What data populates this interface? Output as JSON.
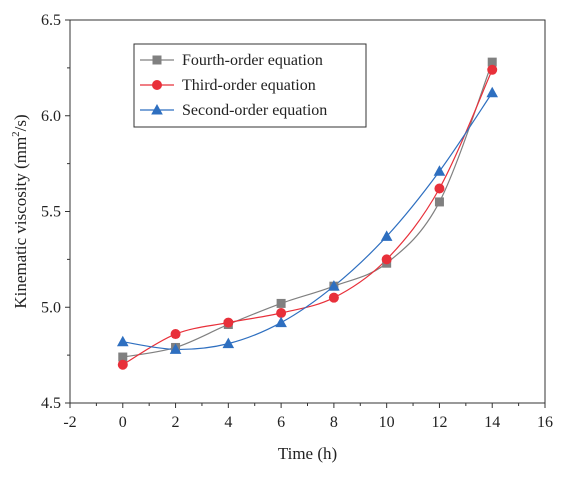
{
  "chart_data": {
    "type": "line",
    "title": "",
    "xlabel": "Time (h)",
    "ylabel_main": "Kinematic viscosity (mm",
    "ylabel_sup": "2",
    "ylabel_end": "/s)",
    "xlim": [
      -2,
      16
    ],
    "ylim": [
      4.5,
      6.5
    ],
    "xticks": [
      -2,
      0,
      2,
      4,
      6,
      8,
      10,
      12,
      14,
      16
    ],
    "yticks": [
      4.5,
      5.0,
      5.5,
      6.0,
      6.5
    ],
    "xtick_labels": [
      "-2",
      "0",
      "2",
      "4",
      "6",
      "8",
      "10",
      "12",
      "14",
      "16"
    ],
    "ytick_labels": [
      "4.5",
      "5.0",
      "5.5",
      "6.0",
      "6.5"
    ],
    "grid": false,
    "legend_position": "top-left",
    "series": [
      {
        "name": "Fourth-order equation",
        "marker": "square",
        "color": "#808080",
        "x": [
          0,
          2,
          4,
          6,
          8,
          10,
          12,
          14
        ],
        "y": [
          4.74,
          4.79,
          4.91,
          5.02,
          5.11,
          5.23,
          5.55,
          6.28
        ]
      },
      {
        "name": "Third-order equation",
        "marker": "circle",
        "color": "#e8303a",
        "x": [
          0,
          2,
          4,
          6,
          8,
          10,
          12,
          14
        ],
        "y": [
          4.7,
          4.86,
          4.92,
          4.97,
          5.05,
          5.25,
          5.62,
          6.24
        ]
      },
      {
        "name": "Second-order equation",
        "marker": "triangle",
        "color": "#2e6fc0",
        "x": [
          0,
          2,
          4,
          6,
          8,
          10,
          12,
          14
        ],
        "y": [
          4.82,
          4.78,
          4.81,
          4.92,
          5.11,
          5.37,
          5.71,
          6.12
        ]
      }
    ]
  }
}
